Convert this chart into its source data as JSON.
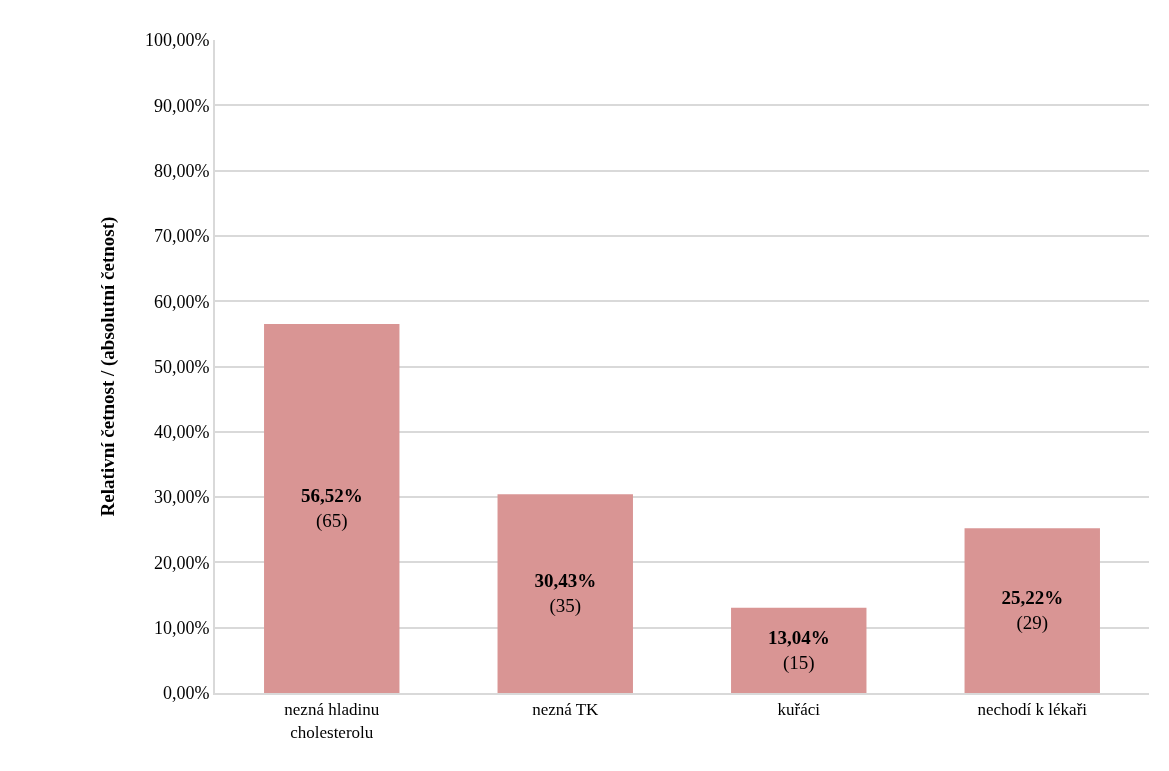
{
  "chart_data": {
    "type": "bar",
    "ylabel": "Relativní četnost / (absolutní četnost)",
    "categories": [
      "nezná hladinu\ncholesterolu",
      "nezná TK",
      "kuřáci",
      "nechodí k lékaři"
    ],
    "values": [
      56.52,
      30.43,
      13.04,
      25.22
    ],
    "color": "#d99594",
    "value_labels": [
      "56,52%\n(65)",
      "30,43%\n(35)",
      "13,04%\n(15)",
      "25,22%\n(29)"
    ],
    "ylim": [
      0,
      100
    ],
    "yticks": [
      {
        "value": 0,
        "label": "0,00%"
      },
      {
        "value": 10,
        "label": "10,00%"
      },
      {
        "value": 20,
        "label": "20,00%"
      },
      {
        "value": 30,
        "label": "30,00%"
      },
      {
        "value": 40,
        "label": "40,00%"
      },
      {
        "value": 50,
        "label": "50,00%"
      },
      {
        "value": 60,
        "label": "60,00%"
      },
      {
        "value": 70,
        "label": "70,00%"
      },
      {
        "value": 80,
        "label": "80,00%"
      },
      {
        "value": 90,
        "label": "90,00%"
      },
      {
        "value": 100,
        "label": "100,00%"
      }
    ],
    "grid": "y",
    "legend": false
  }
}
